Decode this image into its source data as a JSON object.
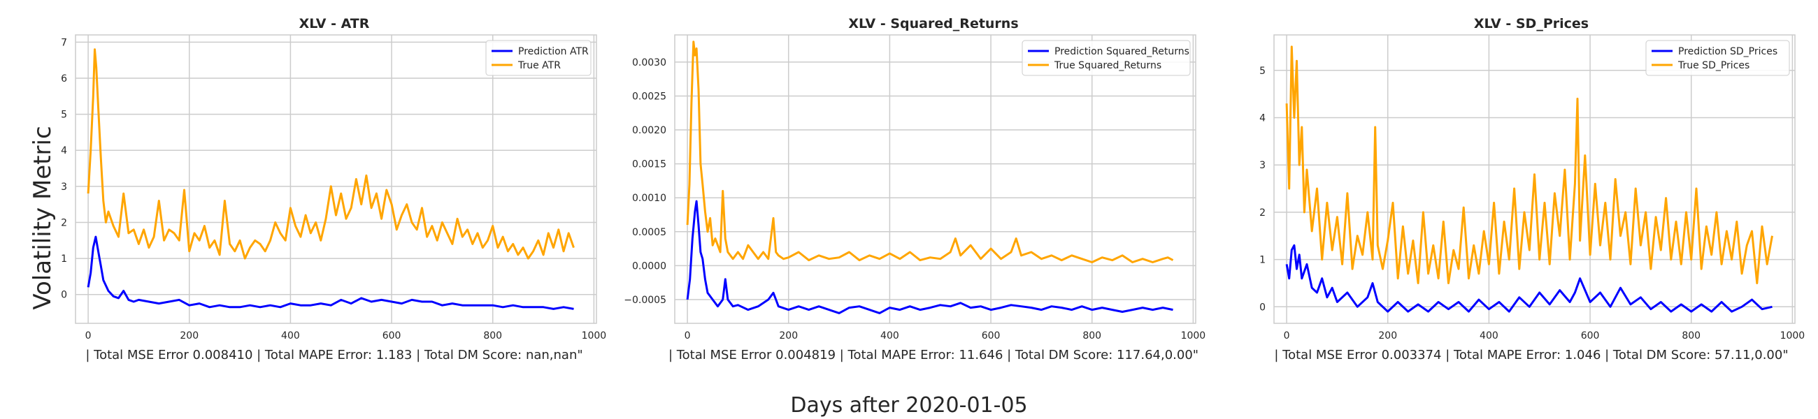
{
  "figure": {
    "ylabel": "Volatility Metric",
    "xlabel": "Days after 2020-01-05"
  },
  "colors": {
    "prediction": "#0000ff",
    "true": "#ffa500"
  },
  "chart_data": [
    {
      "type": "line",
      "title": "XLV - ATR",
      "xlabel": "| Total MSE Error 0.008410 | Total MAPE Error: 1.183 | Total DM Score: nan,nan\"",
      "xlim": [
        -25,
        1005
      ],
      "ylim": [
        -0.8,
        7.2
      ],
      "xticks": [
        0,
        200,
        400,
        600,
        800,
        1000
      ],
      "xtick_labels": [
        "0",
        "200",
        "400",
        "600",
        "800",
        "1000"
      ],
      "yticks": [
        0,
        1,
        2,
        3,
        4,
        5,
        6,
        7
      ],
      "ytick_labels": [
        "0",
        "1",
        "2",
        "3",
        "4",
        "5",
        "6",
        "7"
      ],
      "legend": "top-right",
      "series": [
        {
          "name": "Prediction ATR",
          "x": [
            0,
            5,
            10,
            15,
            20,
            25,
            30,
            40,
            50,
            60,
            70,
            80,
            90,
            100,
            120,
            140,
            160,
            180,
            200,
            220,
            240,
            260,
            280,
            300,
            320,
            340,
            360,
            380,
            400,
            420,
            440,
            460,
            480,
            500,
            520,
            540,
            560,
            580,
            600,
            620,
            640,
            660,
            680,
            700,
            720,
            740,
            760,
            780,
            800,
            820,
            840,
            860,
            880,
            900,
            920,
            940,
            960
          ],
          "values": [
            0.2,
            0.6,
            1.3,
            1.6,
            1.2,
            0.8,
            0.4,
            0.1,
            -0.05,
            -0.1,
            0.1,
            -0.15,
            -0.2,
            -0.15,
            -0.2,
            -0.25,
            -0.2,
            -0.15,
            -0.3,
            -0.25,
            -0.35,
            -0.3,
            -0.35,
            -0.35,
            -0.3,
            -0.35,
            -0.3,
            -0.35,
            -0.25,
            -0.3,
            -0.3,
            -0.25,
            -0.3,
            -0.15,
            -0.25,
            -0.1,
            -0.2,
            -0.15,
            -0.2,
            -0.25,
            -0.15,
            -0.2,
            -0.2,
            -0.3,
            -0.25,
            -0.3,
            -0.3,
            -0.3,
            -0.3,
            -0.35,
            -0.3,
            -0.35,
            -0.35,
            -0.35,
            -0.4,
            -0.35,
            -0.4
          ]
        },
        {
          "name": "True ATR",
          "x": [
            0,
            5,
            10,
            13,
            16,
            20,
            25,
            30,
            35,
            40,
            50,
            60,
            70,
            80,
            90,
            100,
            110,
            120,
            130,
            140,
            150,
            160,
            170,
            180,
            190,
            200,
            210,
            220,
            230,
            240,
            250,
            260,
            270,
            280,
            290,
            300,
            310,
            320,
            330,
            340,
            350,
            360,
            370,
            380,
            390,
            400,
            410,
            420,
            430,
            440,
            450,
            460,
            470,
            480,
            490,
            500,
            510,
            520,
            530,
            540,
            550,
            560,
            570,
            580,
            590,
            600,
            610,
            620,
            630,
            640,
            650,
            660,
            670,
            680,
            690,
            700,
            710,
            720,
            730,
            740,
            750,
            760,
            770,
            780,
            790,
            800,
            810,
            820,
            830,
            840,
            850,
            860,
            870,
            880,
            890,
            900,
            910,
            920,
            930,
            940,
            950,
            960
          ],
          "values": [
            2.8,
            4.0,
            5.5,
            6.8,
            6.3,
            5.2,
            3.8,
            2.6,
            2.0,
            2.3,
            1.9,
            1.6,
            2.8,
            1.7,
            1.8,
            1.4,
            1.8,
            1.3,
            1.6,
            2.6,
            1.5,
            1.8,
            1.7,
            1.5,
            2.9,
            1.2,
            1.7,
            1.5,
            1.9,
            1.3,
            1.5,
            1.1,
            2.6,
            1.4,
            1.2,
            1.5,
            1.0,
            1.3,
            1.5,
            1.4,
            1.2,
            1.5,
            2.0,
            1.7,
            1.5,
            2.4,
            1.9,
            1.6,
            2.2,
            1.7,
            2.0,
            1.5,
            2.1,
            3.0,
            2.2,
            2.8,
            2.1,
            2.4,
            3.2,
            2.5,
            3.3,
            2.4,
            2.8,
            2.1,
            2.9,
            2.5,
            1.8,
            2.2,
            2.5,
            2.0,
            1.8,
            2.4,
            1.6,
            1.9,
            1.5,
            2.0,
            1.7,
            1.4,
            2.1,
            1.6,
            1.8,
            1.4,
            1.7,
            1.3,
            1.5,
            1.9,
            1.3,
            1.6,
            1.2,
            1.4,
            1.1,
            1.3,
            1.0,
            1.2,
            1.5,
            1.1,
            1.7,
            1.3,
            1.8,
            1.2,
            1.7,
            1.3
          ]
        }
      ]
    },
    {
      "type": "line",
      "title": "XLV - Squared_Returns",
      "xlabel": "| Total MSE Error 0.004819 | Total MAPE Error: 11.646 | Total DM Score: 117.64,0.00\"",
      "xlim": [
        -25,
        1005
      ],
      "ylim": [
        -0.00085,
        0.0034
      ],
      "xticks": [
        0,
        200,
        400,
        600,
        800,
        1000
      ],
      "xtick_labels": [
        "0",
        "200",
        "400",
        "600",
        "800",
        "1000"
      ],
      "yticks": [
        -0.0005,
        0.0,
        0.0005,
        0.001,
        0.0015,
        0.002,
        0.0025,
        0.003
      ],
      "ytick_labels": [
        "−0.0005",
        "0.0000",
        "0.0005",
        "0.0010",
        "0.0015",
        "0.0020",
        "0.0025",
        "0.0030"
      ],
      "legend": "top-right",
      "series": [
        {
          "name": "Prediction Squared_Returns",
          "x": [
            0,
            5,
            10,
            15,
            18,
            22,
            26,
            30,
            35,
            40,
            50,
            60,
            70,
            75,
            80,
            90,
            100,
            120,
            140,
            160,
            170,
            175,
            180,
            200,
            220,
            240,
            260,
            280,
            300,
            320,
            340,
            360,
            380,
            400,
            420,
            440,
            460,
            480,
            500,
            520,
            540,
            560,
            580,
            600,
            620,
            640,
            660,
            680,
            700,
            720,
            740,
            760,
            780,
            800,
            820,
            840,
            860,
            880,
            900,
            920,
            940,
            960
          ],
          "values": [
            -0.0005,
            -0.0002,
            0.0004,
            0.0008,
            0.00095,
            0.0006,
            0.0002,
            0.0001,
            -0.0002,
            -0.0004,
            -0.0005,
            -0.0006,
            -0.0005,
            -0.0002,
            -0.0005,
            -0.0006,
            -0.00058,
            -0.00065,
            -0.0006,
            -0.0005,
            -0.0004,
            -0.0005,
            -0.0006,
            -0.00065,
            -0.0006,
            -0.00065,
            -0.0006,
            -0.00065,
            -0.0007,
            -0.00062,
            -0.0006,
            -0.00065,
            -0.0007,
            -0.00062,
            -0.00065,
            -0.0006,
            -0.00065,
            -0.00062,
            -0.00058,
            -0.0006,
            -0.00055,
            -0.00062,
            -0.0006,
            -0.00065,
            -0.00062,
            -0.00058,
            -0.0006,
            -0.00062,
            -0.00065,
            -0.0006,
            -0.00062,
            -0.00065,
            -0.0006,
            -0.00065,
            -0.00062,
            -0.00065,
            -0.00068,
            -0.00065,
            -0.00062,
            -0.00065,
            -0.00062,
            -0.00065
          ]
        },
        {
          "name": "True Squared_Returns",
          "x": [
            0,
            4,
            8,
            12,
            15,
            18,
            22,
            26,
            30,
            35,
            40,
            45,
            50,
            55,
            60,
            65,
            70,
            75,
            80,
            90,
            100,
            110,
            120,
            130,
            140,
            150,
            160,
            170,
            175,
            180,
            190,
            200,
            220,
            240,
            260,
            280,
            300,
            320,
            340,
            360,
            380,
            400,
            420,
            440,
            460,
            480,
            500,
            520,
            530,
            540,
            560,
            580,
            600,
            620,
            640,
            650,
            660,
            680,
            700,
            720,
            740,
            760,
            780,
            800,
            820,
            840,
            860,
            880,
            900,
            920,
            940,
            950,
            960
          ],
          "values": [
            0.0006,
            0.0012,
            0.0024,
            0.0033,
            0.0031,
            0.0032,
            0.0026,
            0.0015,
            0.0012,
            0.0008,
            0.0005,
            0.0007,
            0.0003,
            0.0004,
            0.0003,
            0.0002,
            0.0011,
            0.0004,
            0.0002,
            0.0001,
            0.0002,
            0.0001,
            0.0003,
            0.0002,
            0.0001,
            0.0002,
            0.0001,
            0.0007,
            0.0002,
            0.00015,
            0.0001,
            0.00012,
            0.0002,
            8e-05,
            0.00015,
            0.0001,
            0.00012,
            0.0002,
            8e-05,
            0.00015,
            0.0001,
            0.00018,
            0.0001,
            0.0002,
            8e-05,
            0.00012,
            0.0001,
            0.0002,
            0.0004,
            0.00015,
            0.0003,
            0.0001,
            0.00025,
            0.0001,
            0.0002,
            0.0004,
            0.00015,
            0.0002,
            0.0001,
            0.00015,
            8e-05,
            0.00015,
            0.0001,
            5e-05,
            0.00012,
            8e-05,
            0.00015,
            5e-05,
            0.0001,
            5e-05,
            0.0001,
            0.00012,
            8e-05
          ]
        }
      ]
    },
    {
      "type": "line",
      "title": "XLV - SD_Prices",
      "xlabel": "| Total MSE Error 0.003374 | Total MAPE Error: 1.046 | Total DM Score: 57.11,0.00\"",
      "xlim": [
        -25,
        1005
      ],
      "ylim": [
        -0.35,
        5.75
      ],
      "xticks": [
        0,
        200,
        400,
        600,
        800,
        1000
      ],
      "xtick_labels": [
        "0",
        "200",
        "400",
        "600",
        "800",
        "1000"
      ],
      "yticks": [
        0,
        1,
        2,
        3,
        4,
        5
      ],
      "ytick_labels": [
        "0",
        "1",
        "2",
        "3",
        "4",
        "5"
      ],
      "legend": "top-right",
      "series": [
        {
          "name": "Prediction SD_Prices",
          "x": [
            0,
            5,
            10,
            15,
            20,
            25,
            30,
            40,
            50,
            60,
            70,
            80,
            90,
            100,
            120,
            140,
            160,
            170,
            180,
            200,
            220,
            240,
            260,
            280,
            300,
            320,
            340,
            360,
            380,
            400,
            420,
            440,
            460,
            480,
            500,
            520,
            540,
            560,
            570,
            580,
            600,
            620,
            640,
            660,
            680,
            700,
            720,
            740,
            760,
            780,
            800,
            820,
            840,
            860,
            880,
            900,
            920,
            940,
            960
          ],
          "values": [
            0.9,
            0.6,
            1.2,
            1.3,
            0.8,
            1.1,
            0.6,
            0.9,
            0.4,
            0.3,
            0.6,
            0.2,
            0.4,
            0.1,
            0.3,
            0.0,
            0.2,
            0.5,
            0.1,
            -0.1,
            0.1,
            -0.1,
            0.05,
            -0.1,
            0.1,
            -0.05,
            0.1,
            -0.1,
            0.15,
            -0.05,
            0.1,
            -0.1,
            0.2,
            0.0,
            0.3,
            0.05,
            0.35,
            0.1,
            0.3,
            0.6,
            0.1,
            0.3,
            0.0,
            0.4,
            0.05,
            0.2,
            -0.05,
            0.1,
            -0.1,
            0.05,
            -0.1,
            0.05,
            -0.1,
            0.1,
            -0.1,
            0.0,
            0.15,
            -0.05,
            0.0
          ]
        },
        {
          "name": "True SD_Prices",
          "x": [
            0,
            5,
            10,
            15,
            20,
            25,
            30,
            35,
            40,
            50,
            60,
            70,
            80,
            90,
            100,
            110,
            120,
            130,
            140,
            150,
            160,
            170,
            175,
            180,
            190,
            200,
            210,
            220,
            230,
            240,
            250,
            260,
            270,
            280,
            290,
            300,
            310,
            320,
            330,
            340,
            350,
            360,
            370,
            380,
            390,
            400,
            410,
            420,
            430,
            440,
            450,
            460,
            470,
            480,
            490,
            500,
            510,
            520,
            530,
            540,
            550,
            560,
            570,
            575,
            580,
            590,
            600,
            610,
            620,
            630,
            640,
            650,
            660,
            670,
            680,
            690,
            700,
            710,
            720,
            730,
            740,
            750,
            760,
            770,
            780,
            790,
            800,
            810,
            820,
            830,
            840,
            850,
            860,
            870,
            880,
            890,
            900,
            910,
            920,
            930,
            940,
            950,
            960
          ],
          "values": [
            4.3,
            2.5,
            5.5,
            4.0,
            5.2,
            3.0,
            3.8,
            2.0,
            2.9,
            1.6,
            2.5,
            1.0,
            2.2,
            1.2,
            1.9,
            0.9,
            2.4,
            0.8,
            1.5,
            1.1,
            2.0,
            1.0,
            3.8,
            1.3,
            0.8,
            1.4,
            2.2,
            0.6,
            1.7,
            0.7,
            1.4,
            0.5,
            2.0,
            0.7,
            1.3,
            0.6,
            1.8,
            0.5,
            1.2,
            0.8,
            2.1,
            0.6,
            1.3,
            0.7,
            1.6,
            0.9,
            2.2,
            0.7,
            1.8,
            1.0,
            2.5,
            0.8,
            2.0,
            1.2,
            2.8,
            1.0,
            2.2,
            0.9,
            2.4,
            1.5,
            2.9,
            1.0,
            2.6,
            4.4,
            1.4,
            3.2,
            1.1,
            2.6,
            1.3,
            2.2,
            1.0,
            2.7,
            1.5,
            2.0,
            0.9,
            2.5,
            1.3,
            2.0,
            0.8,
            1.9,
            1.2,
            2.3,
            1.0,
            1.8,
            0.9,
            2.0,
            1.0,
            2.5,
            0.8,
            1.7,
            1.1,
            2.0,
            0.9,
            1.6,
            1.0,
            1.8,
            0.7,
            1.3,
            1.6,
            0.5,
            1.7,
            0.9,
            1.5
          ]
        }
      ]
    }
  ]
}
